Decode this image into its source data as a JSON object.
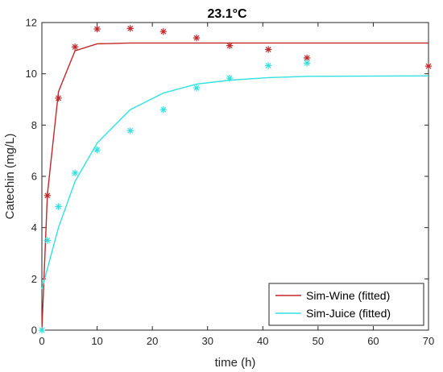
{
  "chart_data": {
    "type": "line",
    "title": "23.1°C",
    "xlabel": "time (h)",
    "ylabel": "Catechin (mg/L)",
    "xlim": [
      0,
      70
    ],
    "ylim": [
      0,
      12
    ],
    "xticks": [
      "0",
      "10",
      "20",
      "30",
      "40",
      "50",
      "60",
      "70"
    ],
    "yticks": [
      "0",
      "2",
      "4",
      "6",
      "8",
      "10",
      "12"
    ],
    "grid": false,
    "legend_position": "bottom-right",
    "series": [
      {
        "name": "Sim-Wine (fitted)",
        "kind": "line",
        "color": "#c0282a",
        "x": [
          0,
          1,
          3,
          6,
          10,
          16,
          22,
          28,
          34,
          41,
          48,
          70
        ],
        "y": [
          0.0,
          5.3,
          9.3,
          10.9,
          11.17,
          11.2,
          11.2,
          11.2,
          11.2,
          11.2,
          11.2,
          11.2
        ]
      },
      {
        "name": "Sim-Juice (fitted)",
        "kind": "line",
        "color": "#33e0e0",
        "x": [
          0,
          1,
          3,
          6,
          10,
          16,
          22,
          28,
          34,
          41,
          48,
          70
        ],
        "y": [
          1.6,
          2.4,
          4.0,
          5.8,
          7.3,
          8.6,
          9.25,
          9.6,
          9.75,
          9.85,
          9.9,
          9.92
        ]
      },
      {
        "name": "",
        "kind": "scatter",
        "marker": "asterisk",
        "color": "#c0282a",
        "x": [
          1,
          3,
          6,
          10,
          16,
          22,
          28,
          34,
          41,
          48,
          70
        ],
        "y": [
          5.25,
          9.05,
          11.05,
          11.75,
          11.77,
          11.65,
          11.4,
          11.1,
          10.95,
          10.62,
          10.3
        ]
      },
      {
        "name": "",
        "kind": "scatter",
        "marker": "asterisk",
        "color": "#33e0e0",
        "x": [
          0,
          1,
          3,
          6,
          10,
          16,
          22,
          28,
          34,
          41,
          48
        ],
        "y": [
          0.0,
          3.5,
          4.82,
          6.13,
          7.03,
          7.78,
          8.6,
          9.45,
          9.83,
          10.32,
          10.42
        ]
      }
    ]
  }
}
